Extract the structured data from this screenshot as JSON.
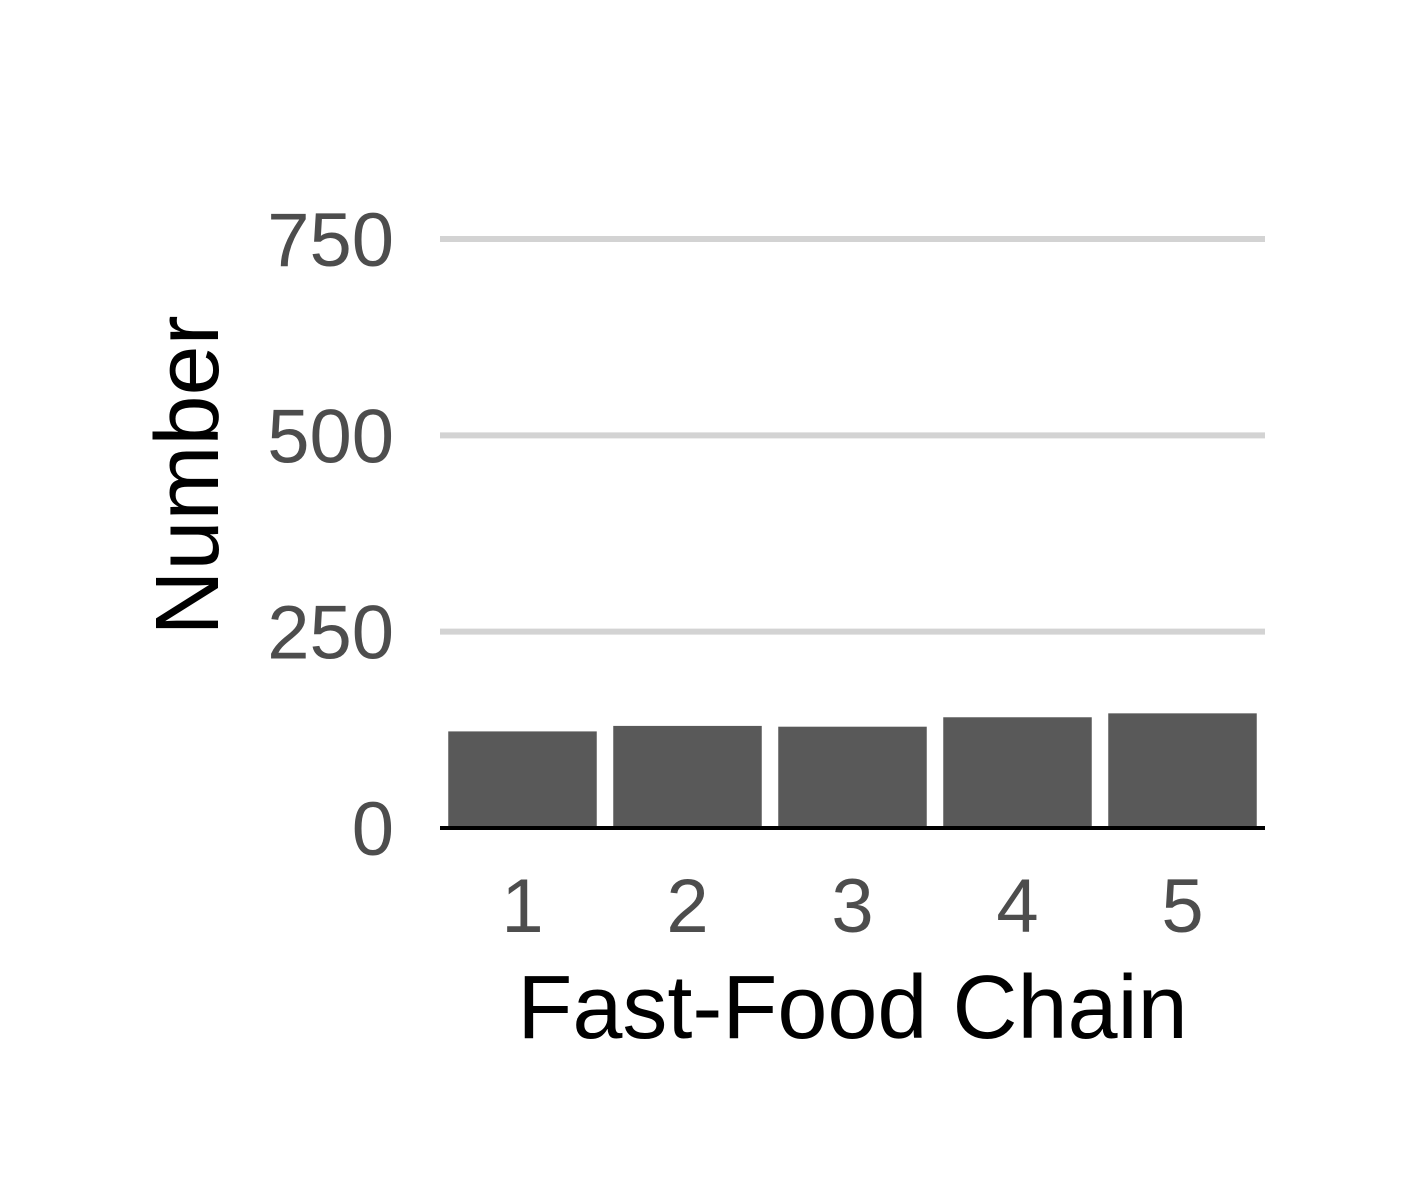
{
  "chart_data": {
    "type": "bar",
    "categories": [
      "1",
      "2",
      "3",
      "4",
      "5"
    ],
    "values": [
      123,
      130,
      129,
      141,
      146
    ],
    "xlabel": "Fast-Food Chain",
    "ylabel": "Number",
    "ylim": [
      0,
      750
    ],
    "yticks": [
      0,
      250,
      500,
      750
    ],
    "grid": "horizontal-major",
    "legend": "none",
    "colors": {
      "bar": "#595959",
      "grid": "#d3d3d3",
      "tick_text": "#4d4d4d",
      "axis_title": "#000000",
      "baseline": "#000000"
    }
  }
}
